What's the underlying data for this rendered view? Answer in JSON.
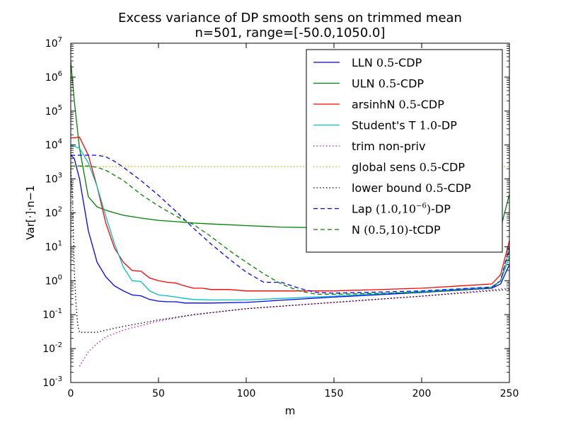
{
  "chart_data": {
    "type": "line",
    "title": "Excess variance of DP smooth sens on trimmed mean",
    "subtitle": "n=501, range=[-50.0,1050.0]",
    "xlabel": "m",
    "ylabel": "Var[·]·n−1",
    "xlim": [
      0,
      250
    ],
    "ylim_log10": [
      -3,
      7
    ],
    "yscale": "log",
    "grid": false,
    "legend_position": "upper-right",
    "x_ticks": [
      {
        "value": 0,
        "label": "0"
      },
      {
        "value": 50,
        "label": "50"
      },
      {
        "value": 100,
        "label": "100"
      },
      {
        "value": 150,
        "label": "150"
      },
      {
        "value": 200,
        "label": "200"
      },
      {
        "value": 250,
        "label": "250"
      }
    ],
    "y_ticks": [
      {
        "exp": -3,
        "base": "10",
        "sup": "-3"
      },
      {
        "exp": -2,
        "base": "10",
        "sup": "-2"
      },
      {
        "exp": -1,
        "base": "10",
        "sup": "-1"
      },
      {
        "exp": 0,
        "base": "10",
        "sup": "0"
      },
      {
        "exp": 1,
        "base": "10",
        "sup": "1"
      },
      {
        "exp": 2,
        "base": "10",
        "sup": "2"
      },
      {
        "exp": 3,
        "base": "10",
        "sup": "3"
      },
      {
        "exp": 4,
        "base": "10",
        "sup": "4"
      },
      {
        "exp": 5,
        "base": "10",
        "sup": "5"
      },
      {
        "exp": 6,
        "base": "10",
        "sup": "6"
      },
      {
        "exp": 7,
        "base": "10",
        "sup": "7"
      }
    ],
    "series": [
      {
        "name": "LLN 0.5-CDP",
        "legend_parts": [
          {
            "t": "LLN "
          },
          {
            "t": "0.5",
            "math": true
          },
          {
            "t": "-CDP"
          }
        ],
        "color": "#0000ff",
        "dash": "solid",
        "x": [
          0,
          2,
          5,
          10,
          15,
          20,
          25,
          30,
          35,
          40,
          45,
          50,
          55,
          60,
          65,
          70,
          80,
          100,
          150,
          200,
          240,
          245,
          250
        ],
        "y": [
          5000,
          4000,
          1000,
          30,
          3.5,
          1.3,
          0.7,
          0.5,
          0.38,
          0.36,
          0.28,
          0.25,
          0.24,
          0.24,
          0.22,
          0.22,
          0.22,
          0.23,
          0.33,
          0.45,
          0.6,
          0.8,
          3
        ]
      },
      {
        "name": "ULN 0.5-CDP",
        "legend_parts": [
          {
            "t": "ULN "
          },
          {
            "t": "0.5",
            "math": true
          },
          {
            "t": "-CDP"
          }
        ],
        "color": "#008000",
        "dash": "solid",
        "x": [
          0,
          2,
          5,
          10,
          15,
          20,
          25,
          30,
          40,
          50,
          60,
          70,
          80,
          100,
          120,
          150,
          200,
          240,
          245,
          250
        ],
        "y": [
          3000000,
          200000,
          8000,
          300,
          150,
          120,
          100,
          85,
          70,
          60,
          55,
          50,
          47,
          42,
          38,
          36,
          35,
          35,
          35,
          350
        ]
      },
      {
        "name": "arsinhN 0.5-CDP",
        "legend_parts": [
          {
            "t": "arsinhN "
          },
          {
            "t": "0.5",
            "math": true
          },
          {
            "t": "-CDP"
          }
        ],
        "color": "#ff0000",
        "dash": "solid",
        "x": [
          0,
          5,
          10,
          15,
          20,
          25,
          30,
          35,
          40,
          45,
          50,
          55,
          60,
          65,
          70,
          75,
          80,
          90,
          100,
          110,
          150,
          200,
          240,
          245,
          250
        ],
        "y": [
          16000,
          17000,
          5000,
          600,
          50,
          9,
          3.5,
          2,
          1.9,
          1.2,
          1,
          0.9,
          0.85,
          0.7,
          0.6,
          0.6,
          0.55,
          0.55,
          0.5,
          0.5,
          0.5,
          0.6,
          0.8,
          1.5,
          15
        ]
      },
      {
        "name": "Student's T 1.0-DP",
        "legend_parts": [
          {
            "t": "Student's T "
          },
          {
            "t": "1.0",
            "math": true
          },
          {
            "t": "-DP"
          }
        ],
        "color": "#00bfbf",
        "dash": "solid",
        "x": [
          0,
          5,
          10,
          15,
          20,
          25,
          30,
          35,
          40,
          45,
          50,
          55,
          60,
          65,
          70,
          80,
          100,
          150,
          200,
          240,
          245,
          250
        ],
        "y": [
          10000,
          8000,
          3000,
          600,
          80,
          12,
          2.5,
          1,
          0.95,
          0.5,
          0.38,
          0.36,
          0.33,
          0.3,
          0.28,
          0.27,
          0.27,
          0.35,
          0.48,
          0.65,
          1,
          5
        ]
      },
      {
        "name": "trim non-priv",
        "legend_parts": [
          {
            "t": "trim non-priv"
          }
        ],
        "color": "#bf00bf",
        "dash": "dotted",
        "x": [
          5,
          10,
          15,
          20,
          30,
          50,
          70,
          100,
          150,
          200,
          250
        ],
        "y": [
          0.003,
          0.008,
          0.014,
          0.022,
          0.035,
          0.065,
          0.1,
          0.15,
          0.23,
          0.35,
          0.6
        ]
      },
      {
        "name": "global sens 0.5-CDP",
        "legend_parts": [
          {
            "t": "global sens "
          },
          {
            "t": "0.5",
            "math": true
          },
          {
            "t": "-CDP"
          }
        ],
        "color": "#bfbf00",
        "dash": "dotted",
        "x": [
          0,
          250
        ],
        "y": [
          2300,
          2300
        ]
      },
      {
        "name": "lower bound 0.5-CDP",
        "legend_parts": [
          {
            "t": "lower bound "
          },
          {
            "t": "0.5",
            "math": true
          },
          {
            "t": "-CDP"
          }
        ],
        "color": "#000000",
        "dash": "dotted",
        "x": [
          0,
          1,
          2,
          3,
          4,
          5,
          10,
          15,
          20,
          30,
          50,
          70,
          100,
          150,
          200,
          250
        ],
        "y": [
          2000,
          300,
          2,
          0.2,
          0.05,
          0.03,
          0.03,
          0.03,
          0.035,
          0.045,
          0.07,
          0.1,
          0.15,
          0.23,
          0.35,
          0.55
        ]
      },
      {
        "name": "Lap (1.0,10^-6)-DP",
        "legend_parts": [
          {
            "t": "Lap "
          },
          {
            "t": "(1.0,10",
            "math": true
          },
          {
            "t": "−6",
            "sup": true
          },
          {
            "t": ")",
            "math": true
          },
          {
            "t": "-DP"
          }
        ],
        "color": "#0000ff",
        "dash": "dashed",
        "x": [
          0,
          5,
          10,
          15,
          20,
          25,
          30,
          40,
          50,
          60,
          70,
          80,
          90,
          100,
          110,
          120,
          130,
          140,
          150,
          200,
          240,
          245,
          250
        ],
        "y": [
          5000,
          5000,
          5000,
          5000,
          4500,
          3300,
          2200,
          900,
          330,
          110,
          35,
          12,
          4.5,
          1.8,
          0.9,
          0.9,
          0.6,
          0.45,
          0.43,
          0.5,
          0.65,
          1,
          10
        ]
      },
      {
        "name": "N (0.5,10)-tCDP",
        "legend_parts": [
          {
            "t": "N "
          },
          {
            "t": "(0.5,10)",
            "math": true
          },
          {
            "t": "-tCDP"
          }
        ],
        "color": "#008000",
        "dash": "dashed",
        "x": [
          0,
          5,
          10,
          15,
          20,
          30,
          40,
          50,
          60,
          70,
          80,
          90,
          100,
          110,
          120,
          130,
          140,
          150,
          200,
          240,
          245,
          250
        ],
        "y": [
          2400,
          2400,
          2400,
          2200,
          1800,
          900,
          350,
          160,
          80,
          45,
          20,
          8,
          3.5,
          1.6,
          0.8,
          0.5,
          0.4,
          0.4,
          0.45,
          0.6,
          1,
          8
        ]
      }
    ]
  }
}
